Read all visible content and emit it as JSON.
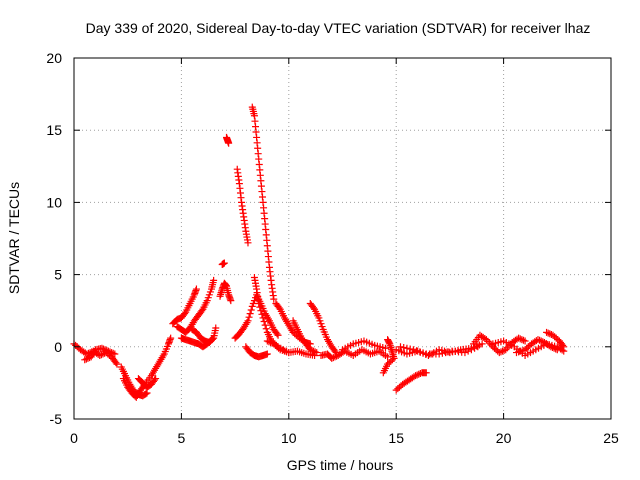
{
  "chart_data": {
    "type": "scatter",
    "title": "Day 339 of 2020, Sidereal Day-to-day VTEC variation (SDTVAR) for receiver lhaz",
    "xlabel": "GPS time / hours",
    "ylabel": "SDTVAR / TECUs",
    "xlim": [
      0,
      25
    ],
    "ylim": [
      -5,
      20
    ],
    "xticks": [
      0,
      5,
      10,
      15,
      20,
      25
    ],
    "yticks": [
      -5,
      0,
      5,
      10,
      15,
      20
    ],
    "xtick_labels": [
      "0",
      "5",
      "10",
      "15",
      "20",
      "25"
    ],
    "ytick_labels": [
      "-5",
      "0",
      "5",
      "10",
      "15",
      "20"
    ],
    "grid": true,
    "marker": "plus",
    "color": "#ff0000",
    "segments": [
      [
        [
          0.0,
          0.2
        ],
        [
          0.3,
          -0.2
        ],
        [
          0.6,
          -0.5
        ],
        [
          0.9,
          -0.3
        ],
        [
          1.2,
          -0.6
        ],
        [
          1.5,
          -0.4
        ],
        [
          1.8,
          -0.8
        ],
        [
          2.0,
          -1.2
        ]
      ],
      [
        [
          0.5,
          -0.9
        ],
        [
          0.8,
          -0.7
        ],
        [
          1.0,
          -0.2
        ],
        [
          1.3,
          -0.1
        ],
        [
          1.6,
          -0.3
        ],
        [
          1.9,
          -0.5
        ]
      ],
      [
        [
          2.2,
          -1.4
        ],
        [
          2.4,
          -2.0
        ],
        [
          2.6,
          -2.6
        ],
        [
          2.8,
          -3.1
        ],
        [
          3.0,
          -3.3
        ],
        [
          3.2,
          -3.4
        ],
        [
          3.4,
          -3.2
        ]
      ],
      [
        [
          2.3,
          -2.2
        ],
        [
          2.5,
          -2.8
        ],
        [
          2.7,
          -3.2
        ],
        [
          2.9,
          -3.5
        ],
        [
          3.1,
          -3.0
        ],
        [
          3.3,
          -2.6
        ],
        [
          3.6,
          -2.0
        ],
        [
          3.8,
          -1.5
        ],
        [
          4.0,
          -1.0
        ],
        [
          4.2,
          -0.5
        ],
        [
          4.4,
          0.2
        ],
        [
          4.5,
          0.6
        ]
      ],
      [
        [
          3.0,
          -2.2
        ],
        [
          3.2,
          -2.5
        ],
        [
          3.4,
          -2.8
        ],
        [
          3.6,
          -2.6
        ],
        [
          3.8,
          -2.2
        ]
      ],
      [
        [
          4.6,
          1.6
        ],
        [
          4.8,
          1.9
        ],
        [
          5.0,
          2.0
        ],
        [
          5.2,
          2.4
        ],
        [
          5.4,
          3.0
        ],
        [
          5.6,
          3.6
        ],
        [
          5.7,
          4.0
        ]
      ],
      [
        [
          4.8,
          1.4
        ],
        [
          5.0,
          1.2
        ],
        [
          5.2,
          1.0
        ],
        [
          5.4,
          1.3
        ],
        [
          5.6,
          1.8
        ],
        [
          5.8,
          2.2
        ],
        [
          6.0,
          2.6
        ],
        [
          6.2,
          3.2
        ],
        [
          6.4,
          4.0
        ],
        [
          6.5,
          4.6
        ]
      ],
      [
        [
          5.0,
          0.6
        ],
        [
          5.2,
          0.5
        ],
        [
          5.4,
          0.4
        ],
        [
          5.6,
          0.3
        ],
        [
          5.8,
          0.2
        ],
        [
          6.0,
          0.0
        ],
        [
          6.2,
          0.2
        ],
        [
          6.4,
          0.5
        ]
      ],
      [
        [
          5.5,
          1.2
        ],
        [
          5.7,
          1.0
        ],
        [
          5.9,
          0.6
        ],
        [
          6.1,
          0.4
        ],
        [
          6.3,
          0.3
        ],
        [
          6.5,
          0.6
        ],
        [
          6.6,
          1.3
        ]
      ],
      [
        [
          6.9,
          5.7
        ],
        [
          7.0,
          5.8
        ]
      ],
      [
        [
          6.8,
          3.5
        ],
        [
          6.9,
          4.0
        ],
        [
          7.0,
          4.4
        ],
        [
          7.1,
          4.2
        ],
        [
          7.2,
          3.6
        ],
        [
          7.3,
          3.2
        ]
      ],
      [
        [
          7.1,
          14.5
        ],
        [
          7.15,
          14.3
        ],
        [
          7.2,
          14.1
        ]
      ],
      [
        [
          7.6,
          12.3
        ],
        [
          7.7,
          11.3
        ],
        [
          7.8,
          10.0
        ],
        [
          7.9,
          9.0
        ],
        [
          8.0,
          8.0
        ],
        [
          8.1,
          7.2
        ]
      ],
      [
        [
          8.3,
          16.6
        ],
        [
          8.4,
          16.0
        ],
        [
          8.5,
          14.5
        ],
        [
          8.6,
          13.0
        ],
        [
          8.7,
          11.5
        ],
        [
          8.8,
          10.0
        ],
        [
          8.9,
          8.5
        ],
        [
          9.0,
          7.0
        ],
        [
          9.1,
          5.5
        ],
        [
          9.2,
          4.3
        ],
        [
          9.3,
          3.3
        ]
      ],
      [
        [
          7.5,
          0.6
        ],
        [
          7.7,
          0.9
        ],
        [
          7.9,
          1.3
        ],
        [
          8.1,
          1.8
        ],
        [
          8.3,
          2.8
        ],
        [
          8.5,
          3.6
        ],
        [
          8.7,
          3.0
        ],
        [
          8.9,
          2.3
        ],
        [
          9.1,
          1.8
        ],
        [
          9.3,
          1.2
        ],
        [
          9.5,
          0.8
        ]
      ],
      [
        [
          8.4,
          4.8
        ],
        [
          8.5,
          4.0
        ],
        [
          8.6,
          3.0
        ],
        [
          8.8,
          2.0
        ],
        [
          9.0,
          1.0
        ],
        [
          9.2,
          0.4
        ],
        [
          9.5,
          0.0
        ],
        [
          10.0,
          -0.4
        ]
      ],
      [
        [
          8.0,
          0.0
        ],
        [
          8.2,
          -0.4
        ],
        [
          8.4,
          -0.6
        ],
        [
          8.6,
          -0.7
        ],
        [
          8.8,
          -0.6
        ],
        [
          9.0,
          -0.5
        ]
      ],
      [
        [
          9.4,
          3.0
        ],
        [
          9.6,
          2.6
        ],
        [
          9.8,
          2.0
        ],
        [
          10.0,
          1.5
        ],
        [
          10.2,
          1.0
        ],
        [
          10.5,
          0.6
        ],
        [
          10.8,
          0.3
        ],
        [
          11.0,
          0.2
        ]
      ],
      [
        [
          9.0,
          0.4
        ],
        [
          9.3,
          0.2
        ],
        [
          9.6,
          -0.2
        ],
        [
          10.0,
          -0.4
        ],
        [
          10.4,
          -0.3
        ],
        [
          10.8,
          -0.5
        ],
        [
          11.2,
          -0.6
        ]
      ],
      [
        [
          10.2,
          1.8
        ],
        [
          10.4,
          1.2
        ],
        [
          10.6,
          0.6
        ],
        [
          10.8,
          0.2
        ],
        [
          11.0,
          -0.2
        ],
        [
          11.3,
          -0.4
        ]
      ],
      [
        [
          11.0,
          3.0
        ],
        [
          11.2,
          2.6
        ],
        [
          11.4,
          2.0
        ],
        [
          11.6,
          1.2
        ],
        [
          11.8,
          0.5
        ],
        [
          12.0,
          0.0
        ],
        [
          12.2,
          -0.4
        ]
      ],
      [
        [
          11.5,
          -0.6
        ],
        [
          11.8,
          -0.5
        ],
        [
          12.0,
          -0.8
        ],
        [
          12.3,
          -0.6
        ],
        [
          12.6,
          -0.3
        ],
        [
          13.0,
          -0.6
        ],
        [
          13.4,
          -0.2
        ],
        [
          13.8,
          -0.5
        ],
        [
          14.2,
          -0.3
        ],
        [
          14.6,
          -0.7
        ]
      ],
      [
        [
          12.5,
          -0.2
        ],
        [
          13.0,
          0.2
        ],
        [
          13.5,
          0.4
        ],
        [
          14.0,
          0.1
        ],
        [
          14.5,
          -0.1
        ]
      ],
      [
        [
          14.6,
          0.5
        ],
        [
          14.7,
          0.2
        ],
        [
          14.8,
          -0.3
        ],
        [
          14.9,
          -0.8
        ],
        [
          14.6,
          -1.2
        ],
        [
          14.4,
          -1.8
        ]
      ],
      [
        [
          15.0,
          -3.0
        ],
        [
          15.3,
          -2.6
        ],
        [
          15.6,
          -2.3
        ],
        [
          15.9,
          -2.0
        ],
        [
          16.2,
          -1.8
        ],
        [
          16.4,
          -1.8
        ]
      ],
      [
        [
          15.0,
          -0.2
        ],
        [
          15.5,
          -0.5
        ],
        [
          16.0,
          -0.3
        ],
        [
          16.5,
          -0.6
        ],
        [
          17.0,
          -0.2
        ],
        [
          17.5,
          -0.4
        ],
        [
          18.0,
          -0.2
        ],
        [
          18.5,
          -0.1
        ],
        [
          19.0,
          0.2
        ]
      ],
      [
        [
          15.2,
          0.0
        ],
        [
          15.8,
          -0.2
        ],
        [
          16.4,
          -0.5
        ],
        [
          17.0,
          -0.5
        ],
        [
          17.6,
          -0.3
        ],
        [
          18.2,
          -0.4
        ],
        [
          18.8,
          0.0
        ]
      ],
      [
        [
          18.6,
          0.2
        ],
        [
          18.9,
          0.8
        ],
        [
          19.2,
          0.5
        ],
        [
          19.5,
          0.0
        ],
        [
          19.8,
          -0.4
        ],
        [
          20.1,
          -0.2
        ],
        [
          20.4,
          0.3
        ],
        [
          20.7,
          0.6
        ],
        [
          21.0,
          0.4
        ]
      ],
      [
        [
          19.5,
          0.2
        ],
        [
          20.0,
          0.4
        ],
        [
          20.5,
          0.0
        ],
        [
          21.0,
          -0.6
        ],
        [
          21.5,
          -0.2
        ],
        [
          22.0,
          0.2
        ],
        [
          22.5,
          0.0
        ],
        [
          22.8,
          -0.3
        ]
      ],
      [
        [
          20.6,
          -0.4
        ],
        [
          21.0,
          -0.2
        ],
        [
          21.3,
          0.2
        ],
        [
          21.6,
          0.5
        ],
        [
          21.9,
          0.3
        ],
        [
          22.2,
          0.0
        ],
        [
          22.5,
          -0.2
        ]
      ],
      [
        [
          22.0,
          1.0
        ],
        [
          22.3,
          0.8
        ],
        [
          22.6,
          0.4
        ],
        [
          22.8,
          0.0
        ]
      ]
    ]
  }
}
